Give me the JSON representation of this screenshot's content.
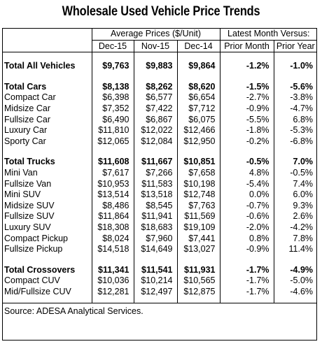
{
  "title": "Wholesale Used Vehicle Price Trends",
  "headers": {
    "group_avg": "Average Prices ($/Unit)",
    "group_latest": "Latest Month Versus:",
    "cols": [
      "Dec-15",
      "Nov-15",
      "Dec-14",
      "Prior Month",
      "Prior Year"
    ]
  },
  "sections": [
    {
      "rows": [
        {
          "label": "Total All Vehicles",
          "bold": true,
          "values": [
            "$9,763",
            "$9,883",
            "$9,864",
            "-1.2%",
            "-1.0%"
          ]
        }
      ]
    },
    {
      "rows": [
        {
          "label": "Total Cars",
          "bold": true,
          "values": [
            "$8,138",
            "$8,262",
            "$8,620",
            "-1.5%",
            "-5.6%"
          ]
        },
        {
          "label": "Compact Car",
          "values": [
            "$6,398",
            "$6,577",
            "$6,654",
            "-2.7%",
            "-3.8%"
          ]
        },
        {
          "label": "Midsize Car",
          "values": [
            "$7,352",
            "$7,422",
            "$7,712",
            "-0.9%",
            "-4.7%"
          ]
        },
        {
          "label": "Fullsize Car",
          "values": [
            "$6,490",
            "$6,867",
            "$6,075",
            "-5.5%",
            "6.8%"
          ]
        },
        {
          "label": "Luxury Car",
          "values": [
            "$11,810",
            "$12,022",
            "$12,466",
            "-1.8%",
            "-5.3%"
          ]
        },
        {
          "label": "Sporty Car",
          "values": [
            "$12,065",
            "$12,084",
            "$12,950",
            "-0.2%",
            "-6.8%"
          ]
        }
      ]
    },
    {
      "rows": [
        {
          "label": "Total Trucks",
          "bold": true,
          "values": [
            "$11,608",
            "$11,667",
            "$10,851",
            "-0.5%",
            "7.0%"
          ]
        },
        {
          "label": "Mini Van",
          "values": [
            "$7,617",
            "$7,266",
            "$7,658",
            "4.8%",
            "-0.5%"
          ]
        },
        {
          "label": "Fullsize Van",
          "values": [
            "$10,953",
            "$11,583",
            "$10,198",
            "-5.4%",
            "7.4%"
          ]
        },
        {
          "label": "Mini SUV",
          "values": [
            "$13,514",
            "$13,518",
            "$12,748",
            "0.0%",
            "6.0%"
          ]
        },
        {
          "label": "Midsize SUV",
          "values": [
            "$8,486",
            "$8,545",
            "$7,763",
            "-0.7%",
            "9.3%"
          ]
        },
        {
          "label": "Fullsize SUV",
          "values": [
            "$11,864",
            "$11,941",
            "$11,569",
            "-0.6%",
            "2.6%"
          ]
        },
        {
          "label": "Luxury SUV",
          "values": [
            "$18,308",
            "$18,683",
            "$19,109",
            "-2.0%",
            "-4.2%"
          ]
        },
        {
          "label": "Compact Pickup",
          "values": [
            "$8,024",
            "$7,960",
            "$7,441",
            "0.8%",
            "7.8%"
          ]
        },
        {
          "label": "Fullsize Pickup",
          "values": [
            "$14,518",
            "$14,649",
            "$13,027",
            "-0.9%",
            "11.4%"
          ]
        }
      ]
    },
    {
      "rows": [
        {
          "label": "Total Crossovers",
          "bold": true,
          "values": [
            "$11,341",
            "$11,541",
            "$11,931",
            "-1.7%",
            "-4.9%"
          ]
        },
        {
          "label": "Compact CUV",
          "values": [
            "$10,036",
            "$10,214",
            "$10,565",
            "-1.7%",
            "-5.0%"
          ]
        },
        {
          "label": "Mid/Fullsize CUV",
          "values": [
            "$12,281",
            "$12,497",
            "$12,875",
            "-1.7%",
            "-4.6%"
          ]
        }
      ]
    }
  ],
  "source": "Source: ADESA Analytical Services."
}
